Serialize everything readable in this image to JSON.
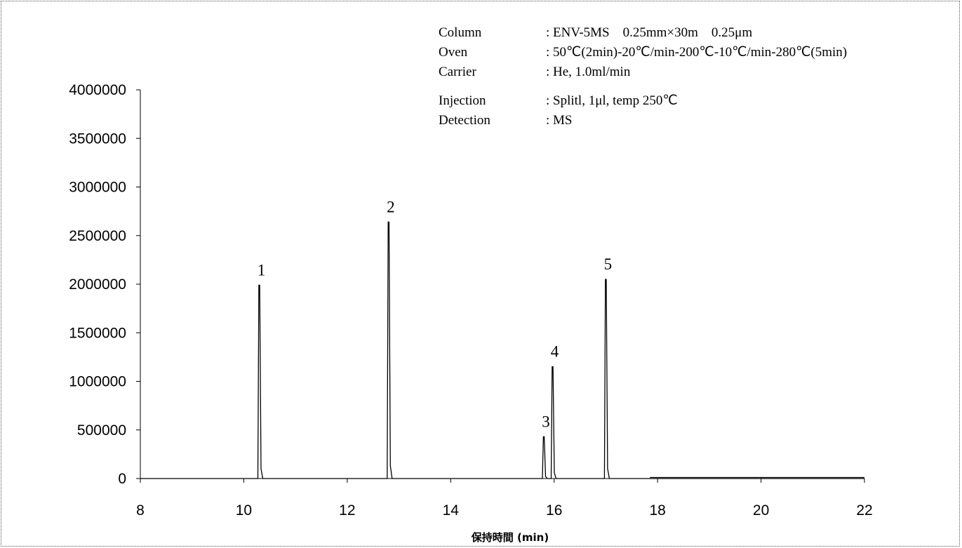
{
  "conditions": [
    {
      "label": "Column",
      "value": ": ENV-5MS　0.25mm×30m　0.25μm"
    },
    {
      "label": "Oven",
      "value": ": 50℃(2min)-20℃/min-200℃-10℃/min-280℃(5min)"
    },
    {
      "label": "Carrier",
      "value": ": He,  1.0ml/min"
    },
    {
      "label": "Injection",
      "value": ": Splitl,  1μl,  temp 250℃"
    },
    {
      "label": "Detection",
      "value": ": MS"
    }
  ],
  "chart_data": {
    "type": "line",
    "title": "",
    "xlabel": "保持時間 (min)",
    "ylabel": "",
    "xlim": [
      8,
      22
    ],
    "ylim": [
      0,
      4000000
    ],
    "x_ticks": [
      8,
      10,
      12,
      14,
      16,
      18,
      20,
      22
    ],
    "y_ticks": [
      0,
      500000,
      1000000,
      1500000,
      2000000,
      2500000,
      3000000,
      3500000,
      4000000
    ],
    "grid": false,
    "legend": "none",
    "baseline_end_min": 17.85,
    "peaks": [
      {
        "label": "1",
        "rt": 10.3,
        "height": 1990000
      },
      {
        "label": "2",
        "rt": 12.8,
        "height": 2640000
      },
      {
        "label": "3",
        "rt": 15.8,
        "height": 430000
      },
      {
        "label": "4",
        "rt": 15.97,
        "height": 1150000
      },
      {
        "label": "5",
        "rt": 17.0,
        "height": 2050000
      }
    ],
    "color": "#000000"
  }
}
